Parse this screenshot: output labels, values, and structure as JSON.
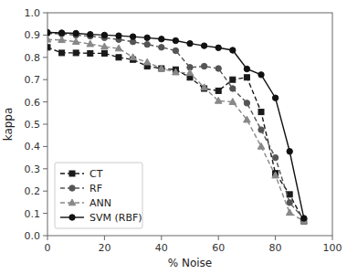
{
  "chart_data": {
    "type": "line",
    "x": [
      0,
      5,
      10,
      15,
      20,
      25,
      30,
      35,
      40,
      45,
      50,
      55,
      60,
      65,
      70,
      75,
      80,
      85,
      90
    ],
    "series": [
      {
        "name": "CT",
        "color": "#1a1a1a",
        "marker": "square",
        "line_style": "dashed",
        "values": [
          0.845,
          0.82,
          0.82,
          0.818,
          0.818,
          0.8,
          0.79,
          0.76,
          0.75,
          0.745,
          0.71,
          0.66,
          0.65,
          0.7,
          0.71,
          0.555,
          0.28,
          0.185,
          0.065
        ]
      },
      {
        "name": "RF",
        "color": "#555555",
        "marker": "circle",
        "line_style": "dashed",
        "values": [
          0.908,
          0.905,
          0.9,
          0.895,
          0.888,
          0.88,
          0.87,
          0.858,
          0.845,
          0.83,
          0.755,
          0.76,
          0.75,
          0.66,
          0.595,
          0.475,
          0.35,
          0.148,
          0.075
        ]
      },
      {
        "name": "ANN",
        "color": "#888888",
        "marker": "triangle",
        "line_style": "dashed",
        "values": [
          0.88,
          0.878,
          0.87,
          0.86,
          0.848,
          0.84,
          0.8,
          0.778,
          0.75,
          0.733,
          0.73,
          0.665,
          0.605,
          0.6,
          0.52,
          0.4,
          0.27,
          0.103,
          0.065
        ]
      },
      {
        "name": "SVM (RBF)",
        "color": "#111111",
        "marker": "circle",
        "line_style": "solid",
        "values": [
          0.912,
          0.91,
          0.908,
          0.903,
          0.9,
          0.897,
          0.893,
          0.888,
          0.882,
          0.875,
          0.862,
          0.852,
          0.843,
          0.832,
          0.748,
          0.722,
          0.618,
          0.378,
          0.078
        ]
      }
    ],
    "xlabel": "% Noise",
    "ylabel": "kappa",
    "xlim": [
      0,
      100
    ],
    "ylim": [
      0.0,
      1.0
    ],
    "xticks": [
      0,
      20,
      40,
      60,
      80,
      100
    ],
    "yticks": [
      {
        "value": 0.0,
        "label": "0.0"
      },
      0.1,
      0.2,
      0.3,
      0.4,
      0.5,
      0.6,
      0.7,
      0.8,
      0.9,
      {
        "value": 1.0,
        "label": "1.0"
      }
    ],
    "legend": "lower left",
    "grid": false
  }
}
